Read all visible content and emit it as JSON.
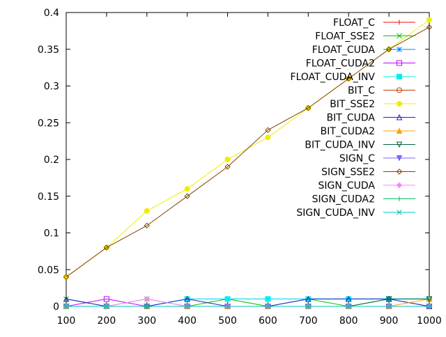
{
  "chart_data": {
    "type": "line",
    "title": "",
    "xlabel": "",
    "ylabel": "",
    "x": [
      100,
      200,
      300,
      400,
      500,
      600,
      700,
      800,
      900,
      1000
    ],
    "xlim": [
      100,
      1000
    ],
    "ylim": [
      0,
      0.4
    ],
    "xticks": [
      "100",
      "200",
      "300",
      "400",
      "500",
      "600",
      "700",
      "800",
      "900",
      "1000"
    ],
    "yticks": [
      "0",
      "0.05",
      "0.1",
      "0.15",
      "0.2",
      "0.25",
      "0.3",
      "0.35",
      "0.4"
    ],
    "ytick_values": [
      0,
      0.05,
      0.1,
      0.15,
      0.2,
      0.25,
      0.3,
      0.35,
      0.4
    ],
    "grid": false,
    "legend_position": "top-right",
    "series": [
      {
        "name": "FLOAT_C",
        "color": "#ff0000",
        "marker": "plus",
        "values": [
          0,
          0,
          0,
          0,
          0,
          0,
          0,
          0,
          0,
          0
        ]
      },
      {
        "name": "FLOAT_SSE2",
        "color": "#00c000",
        "marker": "cross",
        "values": [
          0.01,
          0,
          0.01,
          0,
          0.01,
          0,
          0.01,
          0,
          0.01,
          0
        ]
      },
      {
        "name": "FLOAT_CUDA",
        "color": "#0080ff",
        "marker": "star",
        "values": [
          0,
          0,
          0,
          0.01,
          0.01,
          0.01,
          0.01,
          0.01,
          0.01,
          0.01
        ]
      },
      {
        "name": "FLOAT_CUDA2",
        "color": "#c000ff",
        "marker": "square",
        "values": [
          0,
          0.01,
          0,
          0,
          0,
          0,
          0,
          0,
          0,
          0
        ]
      },
      {
        "name": "FLOAT_CUDA_INV",
        "color": "#00eeee",
        "marker": "filled-square",
        "values": [
          0,
          0,
          0,
          0.01,
          0.01,
          0.01,
          0.01,
          0.01,
          0.01,
          0.01
        ]
      },
      {
        "name": "BIT_C",
        "color": "#c04000",
        "marker": "circle",
        "values": [
          0,
          0,
          0,
          0,
          0,
          0,
          0,
          0,
          0,
          0
        ]
      },
      {
        "name": "BIT_SSE2",
        "color": "#eeee00",
        "marker": "filled-circle",
        "values": [
          0.04,
          0.08,
          0.13,
          0.16,
          0.2,
          0.23,
          0.27,
          0.31,
          0.35,
          0.39
        ]
      },
      {
        "name": "BIT_CUDA",
        "color": "#2020c0",
        "marker": "triangle",
        "values": [
          0.01,
          0,
          0,
          0.01,
          0,
          0,
          0.01,
          0.01,
          0.01,
          0
        ]
      },
      {
        "name": "BIT_CUDA2",
        "color": "#ffa000",
        "marker": "filled-triangle",
        "values": [
          0,
          0,
          0,
          0,
          0,
          0,
          0,
          0,
          0,
          0.01
        ]
      },
      {
        "name": "BIT_CUDA_INV",
        "color": "#006040",
        "marker": "triangle-down",
        "values": [
          0,
          0,
          0,
          0,
          0,
          0,
          0,
          0,
          0.01,
          0.01
        ]
      },
      {
        "name": "SIGN_C",
        "color": "#8060ff",
        "marker": "filled-triangle-down",
        "values": [
          0,
          0,
          0,
          0,
          0,
          0,
          0,
          0,
          0,
          0
        ]
      },
      {
        "name": "SIGN_SSE2",
        "color": "#804000",
        "marker": "diamond",
        "values": [
          0.04,
          0.08,
          0.11,
          0.15,
          0.19,
          0.24,
          0.27,
          0.31,
          0.35,
          0.38
        ]
      },
      {
        "name": "SIGN_CUDA",
        "color": "#ff80ff",
        "marker": "filled-diamond",
        "values": [
          0,
          0,
          0.01,
          0,
          0,
          0,
          0,
          0,
          0,
          0
        ]
      },
      {
        "name": "SIGN_CUDA2",
        "color": "#00c060",
        "marker": "plus",
        "values": [
          0,
          0,
          0,
          0,
          0,
          0,
          0,
          0,
          0,
          0
        ]
      },
      {
        "name": "SIGN_CUDA_INV",
        "color": "#00c0c0",
        "marker": "cross",
        "values": [
          0,
          0,
          0,
          0,
          0,
          0,
          0,
          0,
          0,
          0
        ]
      }
    ]
  }
}
